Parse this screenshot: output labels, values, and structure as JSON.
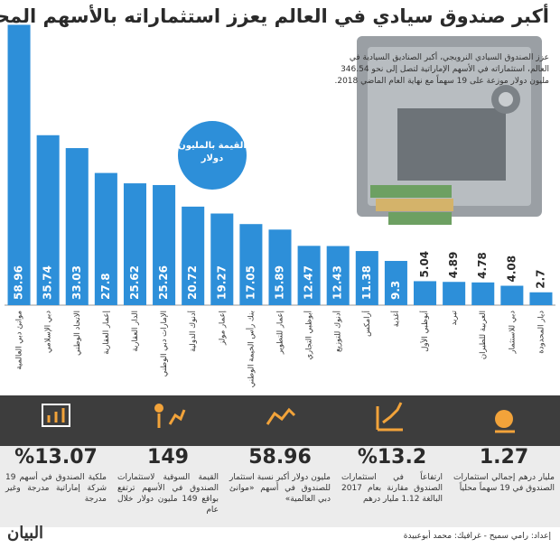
{
  "chart_data": {
    "type": "bar",
    "title": "أكبر صندوق سيادي في العالم يعزز استثماراته بالأسهم المحلية",
    "subtitle": "عزز الصندوق السيادي النرويجي، أكبر الصناديق السيادية في العالم، استثماراته في الأسهم الإماراتية لتصل إلى نحو 346.54 مليون دولار موزعة على 19 سهماً مع نهاية العام الماضي 2018.",
    "note": "القيمة بالمليون دولار",
    "categories": [
      "موانئ دبي العالمية",
      "دبي الإسلامي",
      "الاتحاد الوطني",
      "إعمار العقارية",
      "الدار العقارية",
      "الإمارات دبي الوطني",
      "أدنوك الدولية",
      "إعمار مولز",
      "بنك رأس الخيمة الوطني",
      "إعمار للتطوير",
      "أبوظبي التجاري",
      "أدنوك للتوزيع",
      "أرامكس",
      "أغذية",
      "أبوظبي الأول",
      "تبريد",
      "العربية للطيران",
      "دبي للاستثمار",
      "ديار المحدودة"
    ],
    "values": [
      58.96,
      35.74,
      33.03,
      27.8,
      25.62,
      25.26,
      20.72,
      19.27,
      17.05,
      15.89,
      12.47,
      12.43,
      11.38,
      9.3,
      5.04,
      4.89,
      4.78,
      4.08,
      2.7
    ],
    "color": "#2d8fd9",
    "ylim": [
      0,
      60
    ]
  },
  "stats": [
    {
      "value": "%13.07",
      "text": "ملكية الصندوق في أسهم 19 شركة إماراتية مدرجة وغير مدرجة"
    },
    {
      "value": "149",
      "text": "القيمة السوقية لاستثمارات الصندوق في الأسهم ترتفع بواقع 149 مليون دولار خلال عام"
    },
    {
      "value": "58.96",
      "text": "مليون دولار أكبر نسبة استثمار للصندوق في أسهم «موانئ دبي العالمية»"
    },
    {
      "value": "%13.2",
      "text": "ارتفاعاً في استثمارات الصندوق مقارنة بعام 2017 البالغة 1.12 مليار درهم"
    },
    {
      "value": "1.27",
      "text": "مليار درهم إجمالي استثمارات الصندوق في 19 سهماً محلياً"
    }
  ],
  "footer": {
    "logo": "البيان",
    "credit": "إعداد: رامي سميح - غرافيك: محمد أبوعبيدة"
  }
}
